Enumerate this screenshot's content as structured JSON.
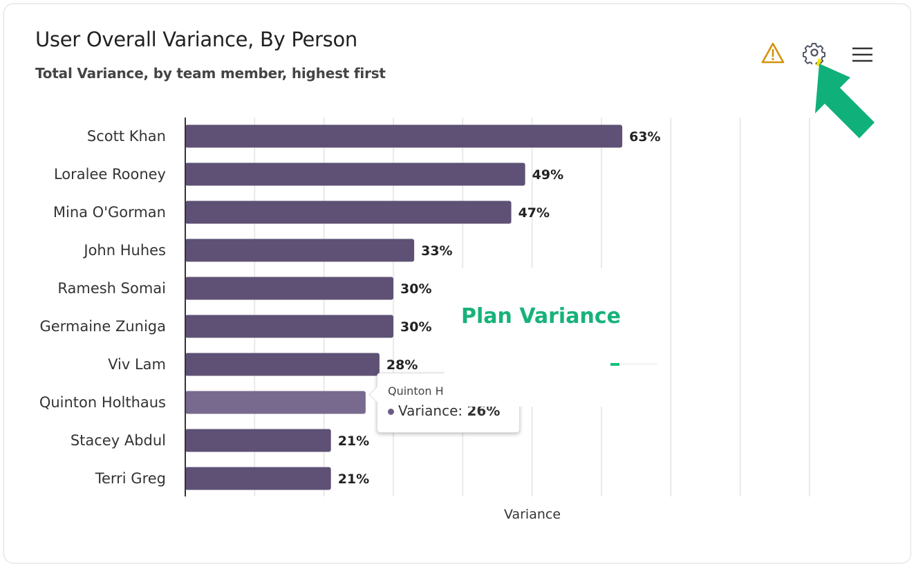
{
  "header": {
    "title": "User Overall Variance, By Person",
    "subtitle": "Total Variance, by team member, highest first",
    "icons": [
      "warning-icon",
      "gear-icon",
      "hamburger-menu-icon"
    ]
  },
  "colors": {
    "bar": "#5e5175",
    "bar_hover": "#786a8f",
    "warning": "#d4920a",
    "annotation_arrow": "#10b07b",
    "overlay_title": "#17b27a"
  },
  "overlay": {
    "title": "Plan Variance"
  },
  "tooltip": {
    "name": "Quinton H",
    "series": "Variance:",
    "value": "26%"
  },
  "chart_data": {
    "type": "bar",
    "orientation": "horizontal",
    "categories": [
      "Scott Khan",
      "Loralee Rooney",
      "Mina O'Gorman",
      "John Huhes",
      "Ramesh Somai",
      "Germaine Zuniga",
      "Viv Lam",
      "Quinton Holthaus",
      "Stacey Abdul",
      "Terri Greg"
    ],
    "values": [
      63,
      49,
      47,
      33,
      30,
      30,
      28,
      26,
      21,
      21
    ],
    "data_labels": [
      "63%",
      "49%",
      "47%",
      "33%",
      "30%",
      "30%",
      "28%",
      "",
      "21%",
      "21%"
    ],
    "xlabel": "Variance",
    "xlim": [
      0,
      90
    ],
    "grid": true,
    "highlighted": "Quinton Holthaus"
  }
}
